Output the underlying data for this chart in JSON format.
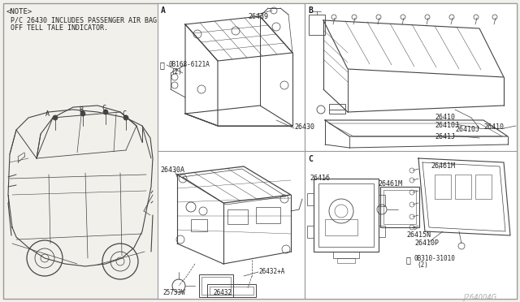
{
  "bg_color": "#f2f0eb",
  "white": "#ffffff",
  "border_color": "#999999",
  "line_color": "#444444",
  "text_color": "#222222",
  "watermark": "J264004G",
  "note_lines": [
    "<NOTE>",
    " P/C 26430 INCLUDES PASSENGER AIR BAG",
    " OFF TELL TALE INDICATOR."
  ],
  "figsize": [
    6.4,
    3.72
  ],
  "dpi": 100
}
